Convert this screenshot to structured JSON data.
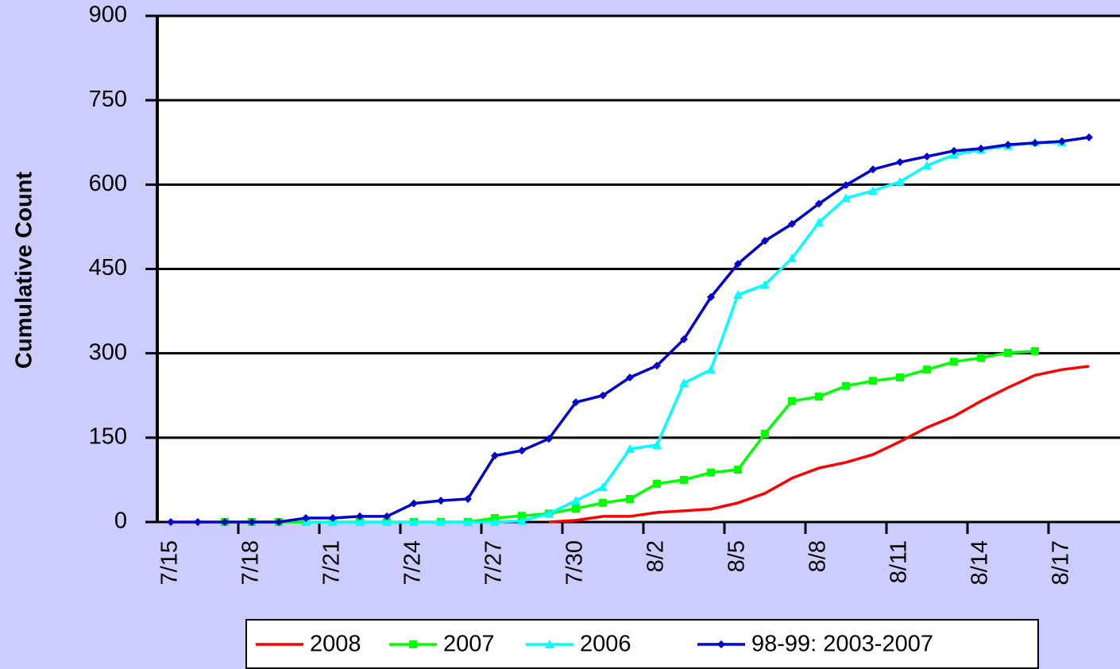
{
  "chart_data": {
    "type": "line",
    "y_label": "Cumulative Count",
    "categories": [
      "7/15",
      null,
      null,
      "7/18",
      null,
      null,
      "7/21",
      null,
      null,
      "7/24",
      null,
      null,
      "7/27",
      null,
      null,
      "7/30",
      null,
      null,
      "8/2",
      null,
      null,
      "8/5",
      null,
      null,
      "8/8",
      null,
      null,
      "8/11",
      null,
      null,
      "8/14",
      null,
      null,
      "8/17",
      null
    ],
    "ylim": [
      0,
      900
    ],
    "yticks": [
      0,
      150,
      300,
      450,
      600,
      750,
      900
    ],
    "grid": true,
    "legend": "bottom",
    "series": [
      {
        "name": "2008",
        "color": "#ff0000",
        "marker": "none",
        "values": [
          null,
          null,
          null,
          null,
          null,
          null,
          null,
          null,
          null,
          null,
          null,
          null,
          null,
          null,
          0,
          3,
          10,
          10,
          17,
          20,
          23,
          34,
          51,
          78,
          96,
          106,
          120,
          143,
          168,
          188,
          215,
          239,
          261,
          271,
          277
        ]
      },
      {
        "name": "2007",
        "color": "#00ff00",
        "marker": "square",
        "values": [
          null,
          null,
          0,
          0,
          0,
          0,
          0,
          0,
          0,
          0,
          0,
          0,
          7,
          11,
          15,
          24,
          34,
          41,
          68,
          75,
          88,
          93,
          157,
          215,
          223,
          242,
          251,
          257,
          271,
          285,
          292,
          301,
          304,
          null,
          null
        ]
      },
      {
        "name": "2006",
        "color": "#00ffff",
        "marker": "triangle",
        "values": [
          null,
          null,
          null,
          null,
          null,
          0,
          0,
          0,
          0,
          0,
          0,
          0,
          0,
          2,
          15,
          38,
          62,
          130,
          137,
          247,
          271,
          404,
          422,
          469,
          533,
          576,
          589,
          605,
          634,
          653,
          662,
          669,
          675,
          675,
          null
        ]
      },
      {
        "name": "98-99: 2003-2007",
        "color": "#0000cc",
        "marker": "diamond",
        "values": [
          0,
          0,
          0,
          0,
          0,
          7,
          7,
          10,
          10,
          33,
          38,
          41,
          118,
          127,
          148,
          213,
          225,
          257,
          278,
          325,
          400,
          459,
          500,
          530,
          566,
          599,
          627,
          640,
          650,
          660,
          664,
          671,
          674,
          677,
          684
        ]
      }
    ]
  }
}
